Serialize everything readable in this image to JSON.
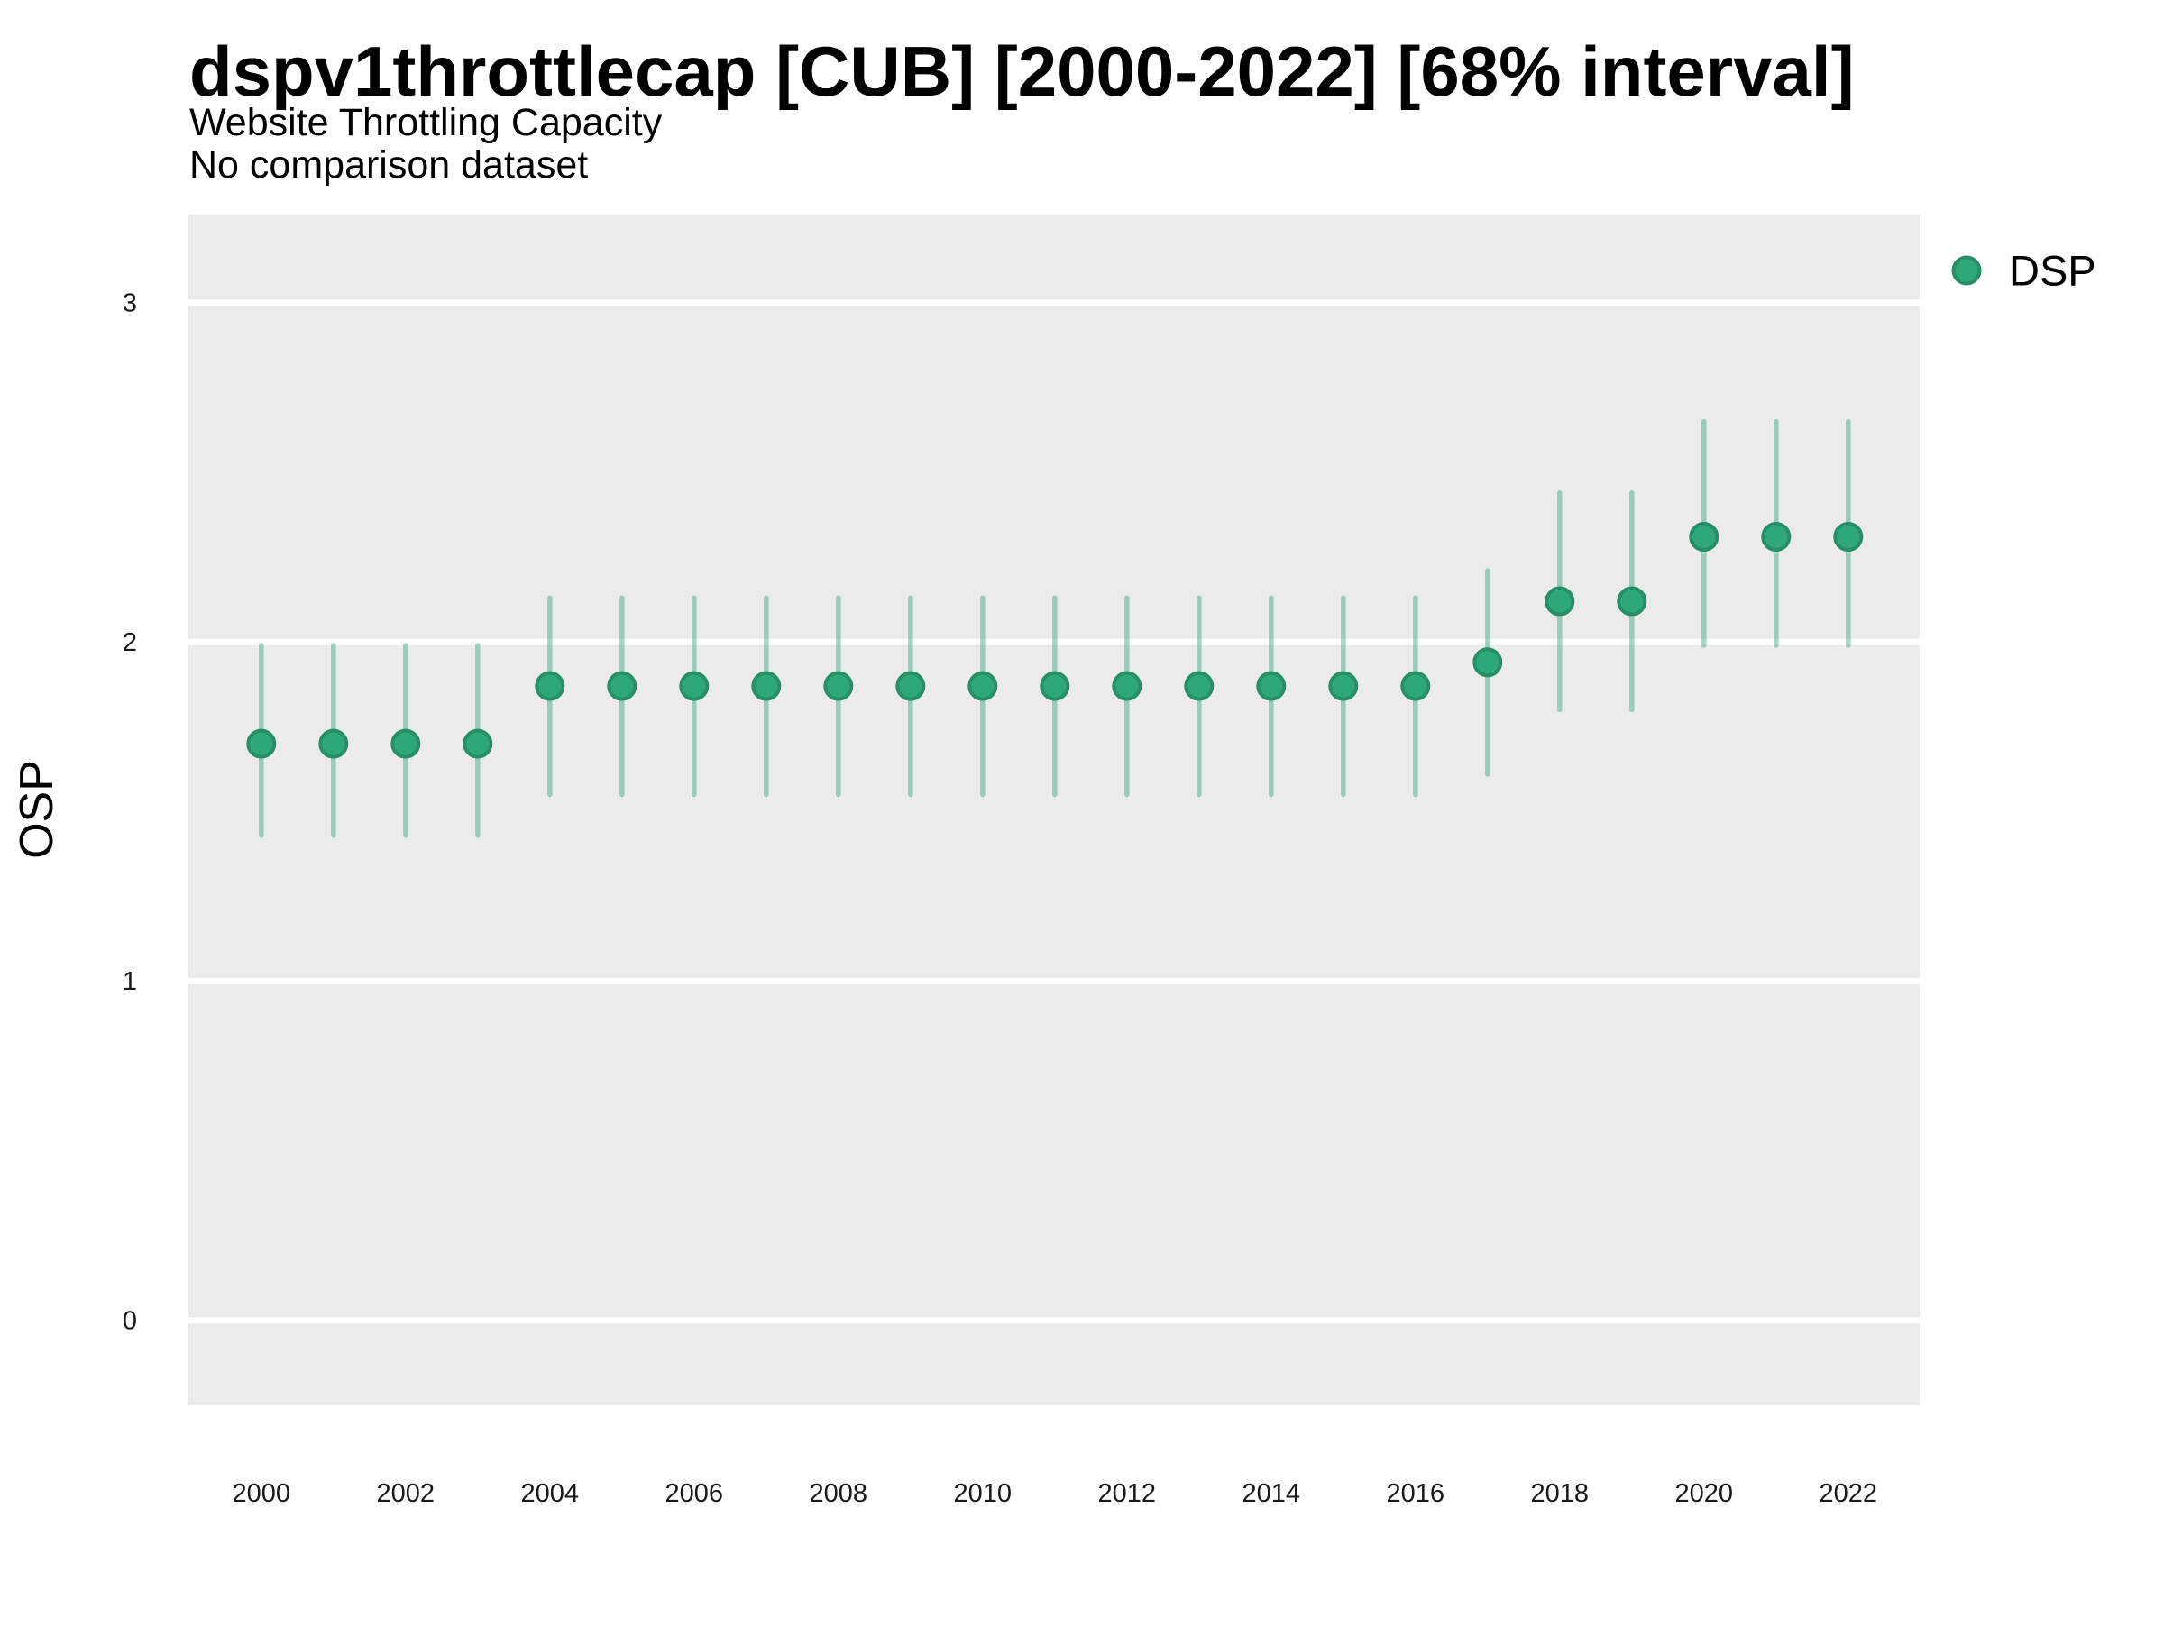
{
  "header": {
    "title": "dspv1throttlecap [CUB] [2000-2022] [68% interval]",
    "subtitle": "Website Throttling Capacity",
    "comparison_note": "No comparison dataset"
  },
  "legend": {
    "label": "DSP",
    "position": "right-top"
  },
  "colors": {
    "point_fill": "#2EA87B",
    "point_edge": "#268F68",
    "interval_bar": "#2EA87B",
    "interval_bar_opacity": 0.45,
    "panel_background": "#EBEBEB",
    "gridline": "#FFFFFF",
    "title_text": "#000000",
    "tick_text": "#1A1A1A"
  },
  "chart_data": {
    "type": "scatter",
    "subtype": "pointrange",
    "title": "dspv1throttlecap [CUB] [2000-2022] [68% interval]",
    "subtitle": "Website Throttling Capacity",
    "note": "No comparison dataset",
    "xlabel": "",
    "ylabel": "OSP",
    "interval_level": "68%",
    "xlim": [
      1998.99,
      2022.99
    ],
    "ylim": [
      -0.25,
      3.26
    ],
    "x_ticks": [
      2000,
      2002,
      2004,
      2006,
      2008,
      2010,
      2012,
      2014,
      2016,
      2018,
      2020,
      2022
    ],
    "y_ticks": [
      0,
      1,
      2,
      3
    ],
    "grid": "horizontal-major-only-white-on-gray",
    "legend_position": "right-top",
    "series": [
      {
        "name": "DSP",
        "x": [
          2000,
          2001,
          2002,
          2003,
          2004,
          2005,
          2006,
          2007,
          2008,
          2009,
          2010,
          2011,
          2012,
          2013,
          2014,
          2015,
          2016,
          2017,
          2018,
          2019,
          2020,
          2021,
          2022
        ],
        "y": [
          1.7,
          1.7,
          1.7,
          1.7,
          1.87,
          1.87,
          1.87,
          1.87,
          1.87,
          1.87,
          1.87,
          1.87,
          1.87,
          1.87,
          1.87,
          1.87,
          1.87,
          1.94,
          2.12,
          2.12,
          2.31,
          2.31,
          2.31
        ],
        "y_low": [
          1.43,
          1.43,
          1.43,
          1.43,
          1.55,
          1.55,
          1.55,
          1.55,
          1.55,
          1.55,
          1.55,
          1.55,
          1.55,
          1.55,
          1.55,
          1.55,
          1.55,
          1.61,
          1.8,
          1.8,
          1.99,
          1.99,
          1.99
        ],
        "y_high": [
          1.99,
          1.99,
          1.99,
          1.99,
          2.13,
          2.13,
          2.13,
          2.13,
          2.13,
          2.13,
          2.13,
          2.13,
          2.13,
          2.13,
          2.13,
          2.13,
          2.13,
          2.21,
          2.44,
          2.44,
          2.65,
          2.65,
          2.65
        ]
      }
    ]
  }
}
